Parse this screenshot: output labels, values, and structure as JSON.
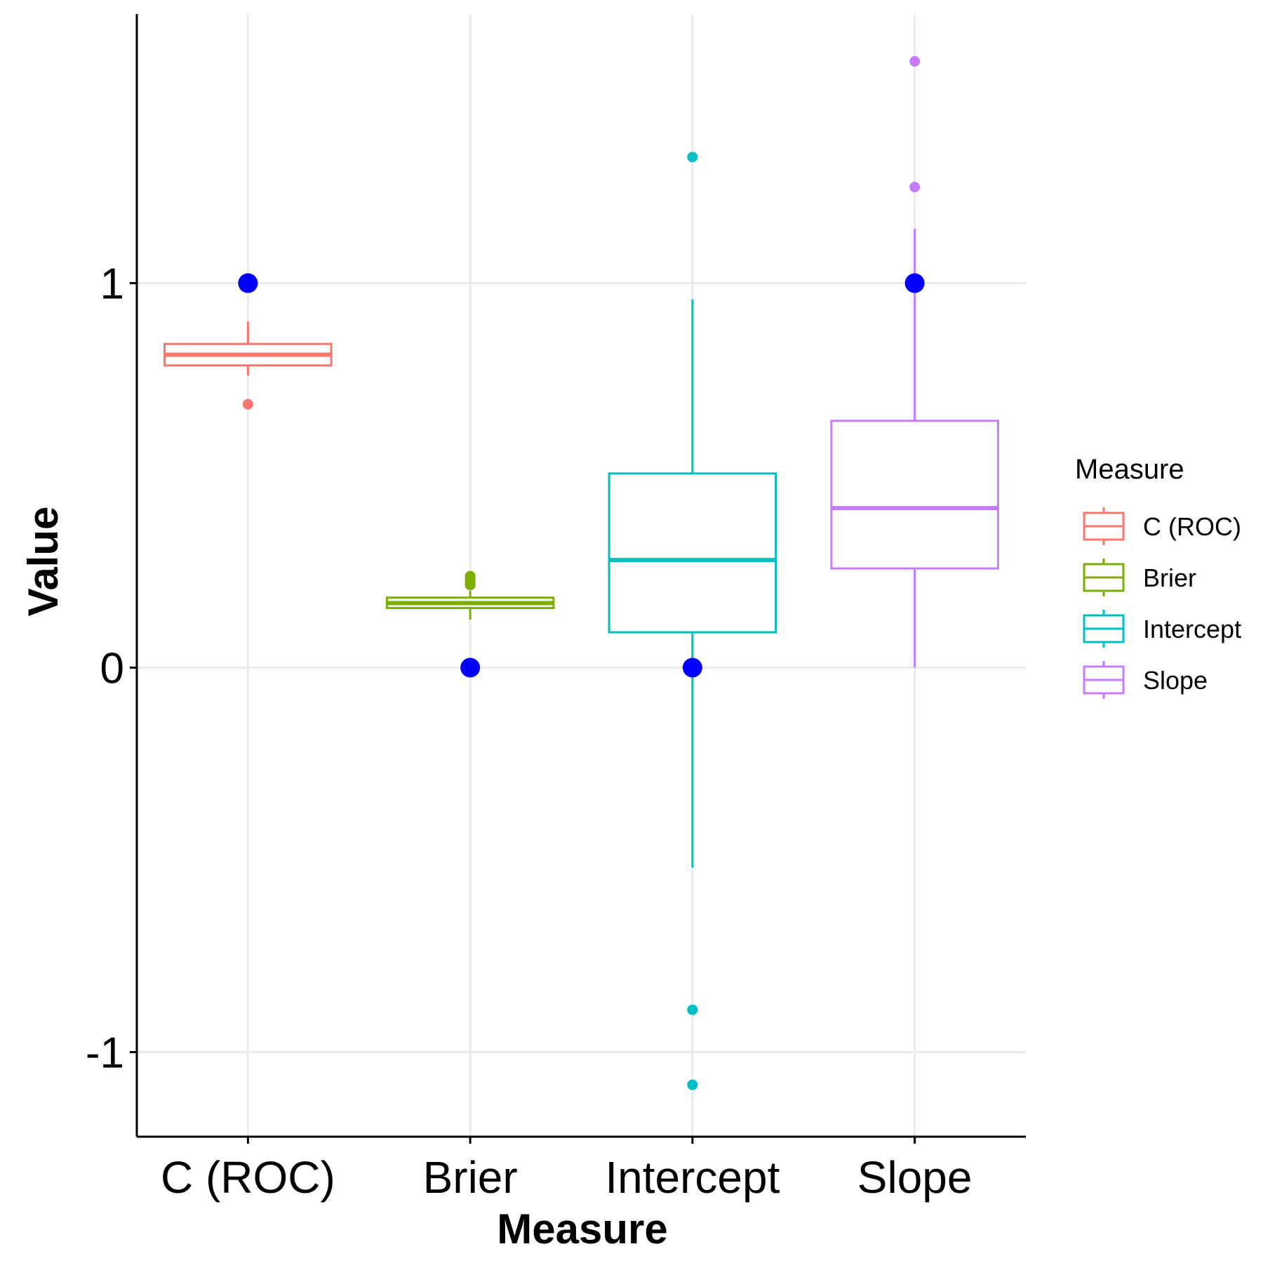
{
  "chart_data": {
    "type": "box",
    "title": "",
    "xlabel": "Measure",
    "ylabel": "Value",
    "ylim": [
      -1.22,
      1.7
    ],
    "yticks": [
      -1,
      0,
      1
    ],
    "ytick_labels": [
      "-1",
      "0",
      "1"
    ],
    "grid": true,
    "legend": {
      "title": "Measure",
      "position": "right",
      "entries": [
        "C (ROC)",
        "Brier",
        "Intercept",
        "Slope"
      ]
    },
    "reference_point_color": "#0000FF",
    "categories": [
      "C (ROC)",
      "Brier",
      "Intercept",
      "Slope"
    ],
    "series": [
      {
        "name": "C (ROC)",
        "color": "#F8766D",
        "box": {
          "whisker_low": 0.76,
          "q1": 0.786,
          "median": 0.814,
          "q3": 0.842,
          "whisker_high": 0.9
        },
        "outliers": [
          0.685
        ],
        "reference": 1
      },
      {
        "name": "Brier",
        "color": "#7CAE00",
        "box": {
          "whisker_low": 0.125,
          "q1": 0.155,
          "median": 0.168,
          "q3": 0.182,
          "whisker_high": 0.2
        },
        "outliers": [
          0.215,
          0.22,
          0.225,
          0.232,
          0.238
        ],
        "reference": 0
      },
      {
        "name": "Intercept",
        "color": "#00BFC4",
        "box": {
          "whisker_low": -0.52,
          "q1": 0.092,
          "median": 0.28,
          "q3": 0.505,
          "whisker_high": 0.958
        },
        "outliers": [
          1.328,
          -0.89,
          -1.085
        ],
        "reference": 0
      },
      {
        "name": "Slope",
        "color": "#C77CFF",
        "box": {
          "whisker_low": 0.0,
          "q1": 0.258,
          "median": 0.415,
          "q3": 0.642,
          "whisker_high": 1.142
        },
        "outliers": [
          1.577,
          1.25
        ],
        "reference": 1
      }
    ]
  }
}
